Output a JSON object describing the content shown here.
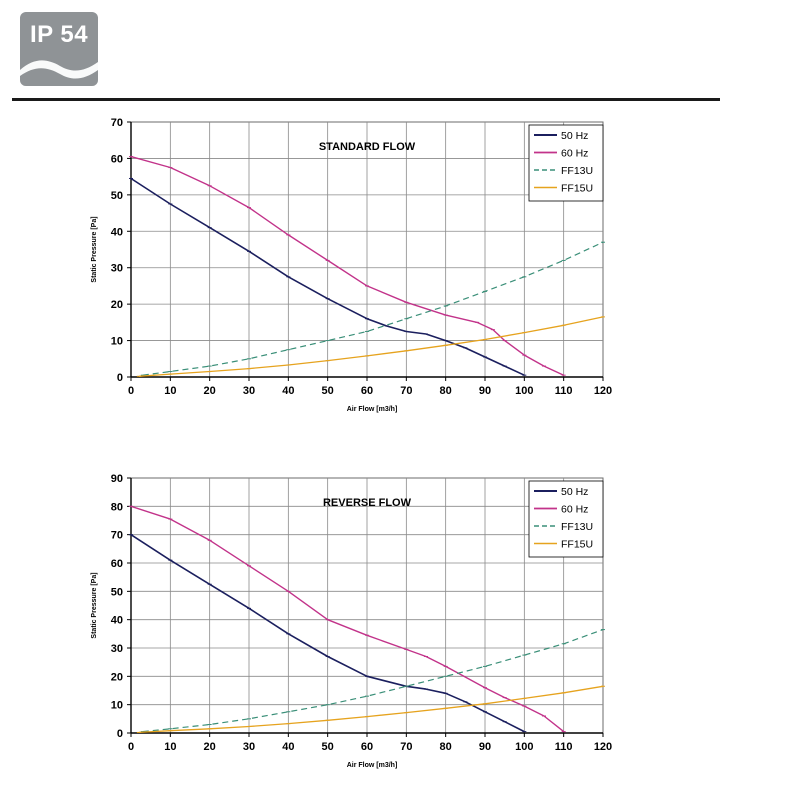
{
  "badge": {
    "label": "IP 54"
  },
  "chart_data": [
    {
      "type": "line",
      "title": "STANDARD FLOW",
      "xlabel": "Air Flow [m3/h]",
      "ylabel": "Static Pressure [Pa]",
      "xlim": [
        0,
        120
      ],
      "ylim": [
        0,
        70
      ],
      "xticks": [
        0,
        10,
        20,
        30,
        40,
        50,
        60,
        70,
        80,
        90,
        100,
        110,
        120
      ],
      "yticks": [
        0,
        10,
        20,
        30,
        40,
        50,
        60,
        70
      ],
      "grid": true,
      "legend": "top-right",
      "series": [
        {
          "name": "50 Hz",
          "color": "#1b1f5e",
          "style": "solid",
          "width": 1.6,
          "x": [
            0,
            10,
            20,
            30,
            40,
            50,
            60,
            65,
            70,
            75,
            80,
            85,
            90,
            95,
            100
          ],
          "y": [
            54.5,
            47.5,
            41,
            34.5,
            27.5,
            21.5,
            16,
            14,
            12.5,
            11.8,
            10,
            8,
            5.5,
            3,
            0.5
          ]
        },
        {
          "name": "60 Hz",
          "color": "#c2338a",
          "style": "solid",
          "width": 1.4,
          "x": [
            0,
            10,
            20,
            30,
            40,
            50,
            60,
            70,
            80,
            88,
            92,
            95,
            100,
            105,
            110
          ],
          "y": [
            60.5,
            57.5,
            52.5,
            46.5,
            39,
            32,
            25,
            20.5,
            17,
            15,
            13,
            10,
            6,
            3,
            0.5
          ]
        },
        {
          "name": "FF13U",
          "color": "#3a8f78",
          "style": "dashed",
          "width": 1.2,
          "x": [
            3,
            10,
            20,
            30,
            40,
            50,
            60,
            70,
            80,
            90,
            100,
            110,
            120
          ],
          "y": [
            0.5,
            1.5,
            3,
            5,
            7.5,
            10,
            12.5,
            16,
            19.5,
            23.5,
            27.5,
            32,
            37
          ]
        },
        {
          "name": "FF15U",
          "color": "#e6a31e",
          "style": "solid",
          "width": 1.3,
          "x": [
            2,
            10,
            20,
            30,
            40,
            50,
            60,
            70,
            80,
            90,
            100,
            110,
            120
          ],
          "y": [
            0.2,
            0.8,
            1.5,
            2.3,
            3.3,
            4.5,
            5.8,
            7.2,
            8.7,
            10.3,
            12.2,
            14.2,
            16.5
          ]
        }
      ]
    },
    {
      "type": "line",
      "title": "REVERSE FLOW",
      "xlabel": "Air Flow [m3/h]",
      "ylabel": "Static Pressure [Pa]",
      "xlim": [
        0,
        120
      ],
      "ylim": [
        0,
        90
      ],
      "xticks": [
        0,
        10,
        20,
        30,
        40,
        50,
        60,
        70,
        80,
        90,
        100,
        110,
        120
      ],
      "yticks": [
        0,
        10,
        20,
        30,
        40,
        50,
        60,
        70,
        80,
        90
      ],
      "grid": true,
      "legend": "top-right",
      "series": [
        {
          "name": "50 Hz",
          "color": "#1b1f5e",
          "style": "solid",
          "width": 1.6,
          "x": [
            0,
            10,
            20,
            30,
            40,
            50,
            60,
            70,
            75,
            80,
            85,
            90,
            95,
            100
          ],
          "y": [
            70,
            61,
            52.5,
            44,
            35,
            27,
            20,
            16.5,
            15.5,
            14,
            11,
            7.5,
            4,
            0.5
          ]
        },
        {
          "name": "60 Hz",
          "color": "#c2338a",
          "style": "solid",
          "width": 1.4,
          "x": [
            0,
            10,
            20,
            30,
            40,
            50,
            60,
            70,
            75,
            80,
            90,
            95,
            100,
            105,
            110
          ],
          "y": [
            80,
            75.5,
            68,
            59,
            50,
            40,
            34.5,
            29.5,
            27,
            23.5,
            16,
            12.5,
            9.5,
            6,
            0.5
          ]
        },
        {
          "name": "FF13U",
          "color": "#3a8f78",
          "style": "dashed",
          "width": 1.2,
          "x": [
            3,
            10,
            20,
            30,
            40,
            50,
            60,
            70,
            80,
            90,
            100,
            110,
            120
          ],
          "y": [
            0.5,
            1.5,
            3,
            5,
            7.5,
            10,
            13,
            16.5,
            20,
            23.5,
            27.5,
            31.5,
            36.5
          ]
        },
        {
          "name": "FF15U",
          "color": "#e6a31e",
          "style": "solid",
          "width": 1.3,
          "x": [
            2,
            10,
            20,
            30,
            40,
            50,
            60,
            70,
            80,
            90,
            100,
            110,
            120
          ],
          "y": [
            0.2,
            0.8,
            1.5,
            2.3,
            3.3,
            4.5,
            5.8,
            7.2,
            8.7,
            10.3,
            12.2,
            14.2,
            16.5
          ]
        }
      ]
    }
  ]
}
